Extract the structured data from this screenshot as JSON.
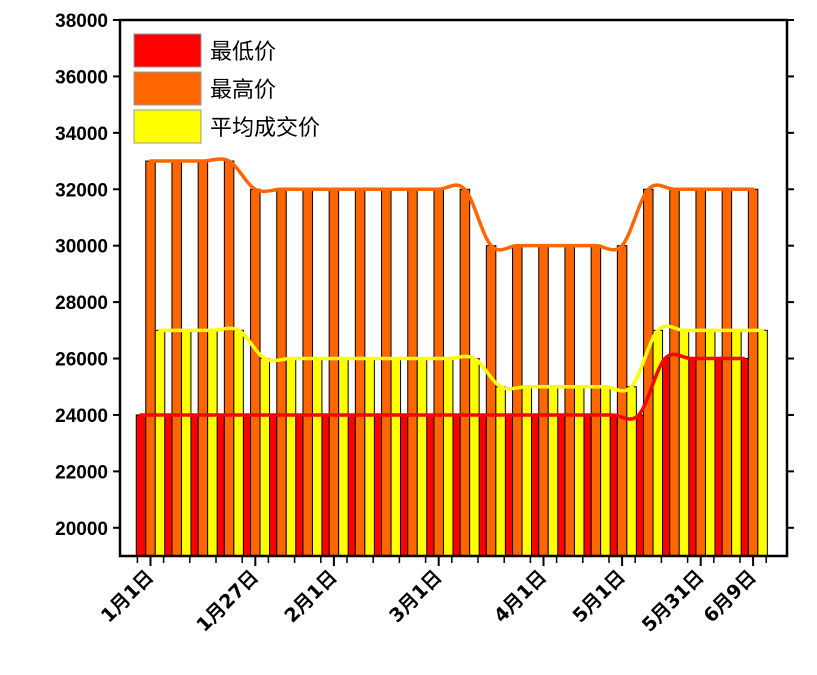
{
  "chart_data": {
    "type": "bar",
    "title": "",
    "xlabel": "",
    "ylabel": "",
    "ylim": [
      19000,
      38000
    ],
    "yticks": [
      20000,
      22000,
      24000,
      26000,
      28000,
      30000,
      32000,
      34000,
      36000,
      38000
    ],
    "grid": false,
    "legend_position": "top-left",
    "x_tick_labels": [
      "1月1日",
      "1月27日",
      "2月1日",
      "3月1日",
      "4月1日",
      "5月1日",
      "5月31日",
      "6月9日"
    ],
    "x_tick_label_positions": [
      1,
      5,
      8,
      12,
      16,
      19,
      22,
      24
    ],
    "categories": [
      1,
      2,
      3,
      4,
      5,
      6,
      7,
      8,
      9,
      10,
      11,
      12,
      13,
      14,
      15,
      16,
      17,
      18,
      19,
      20,
      21,
      22,
      23,
      24
    ],
    "series": [
      {
        "name": "最低价",
        "color": "#ff0000",
        "values": [
          24000,
          24000,
          24000,
          24000,
          24000,
          24000,
          24000,
          24000,
          24000,
          24000,
          24000,
          24000,
          24000,
          24000,
          24000,
          24000,
          24000,
          24000,
          24000,
          24000,
          26000,
          26000,
          26000,
          26000
        ]
      },
      {
        "name": "最高价",
        "color": "#ff6600",
        "values": [
          33000,
          33000,
          33000,
          33000,
          32000,
          32000,
          32000,
          32000,
          32000,
          32000,
          32000,
          32000,
          32000,
          30000,
          30000,
          30000,
          30000,
          30000,
          30000,
          32000,
          32000,
          32000,
          32000,
          32000
        ]
      },
      {
        "name": "平均成交价",
        "color": "#ffff00",
        "values": [
          27000,
          27000,
          27000,
          27000,
          26000,
          26000,
          26000,
          26000,
          26000,
          26000,
          26000,
          26000,
          26000,
          25000,
          25000,
          25000,
          25000,
          25000,
          25000,
          27000,
          27000,
          27000,
          27000,
          27000
        ]
      }
    ]
  }
}
